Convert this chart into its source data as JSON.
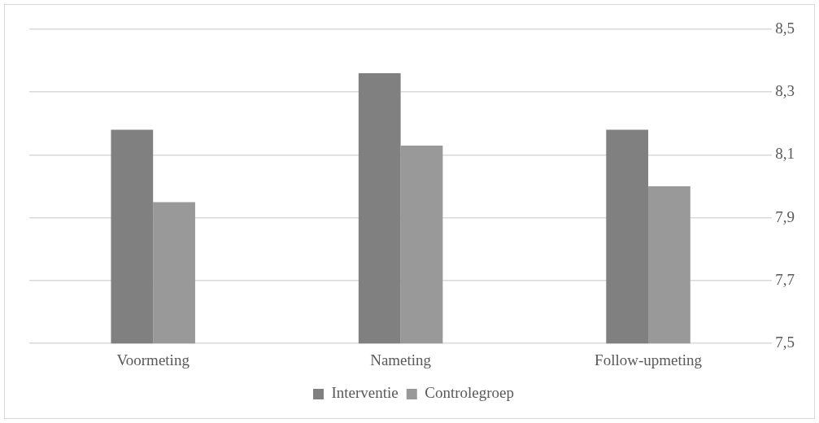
{
  "chart_data": {
    "type": "bar",
    "categories": [
      "Voormeting",
      "Nameting",
      "Follow-upmeting"
    ],
    "series": [
      {
        "name": "Interventie",
        "color": "#808080",
        "values": [
          8.18,
          8.36,
          8.18
        ]
      },
      {
        "name": "Controlegroep",
        "color": "#999999",
        "values": [
          7.95,
          8.13,
          8.0
        ]
      }
    ],
    "ylim": [
      7.5,
      8.5
    ],
    "yticks": [
      {
        "value": 7.5,
        "label": "7,5"
      },
      {
        "value": 7.7,
        "label": "7,7"
      },
      {
        "value": 7.9,
        "label": "7,9"
      },
      {
        "value": 8.1,
        "label": "8,1"
      },
      {
        "value": 8.3,
        "label": "8,3"
      },
      {
        "value": 8.5,
        "label": "8,5"
      }
    ],
    "grid": "y",
    "legend": "bottom"
  }
}
